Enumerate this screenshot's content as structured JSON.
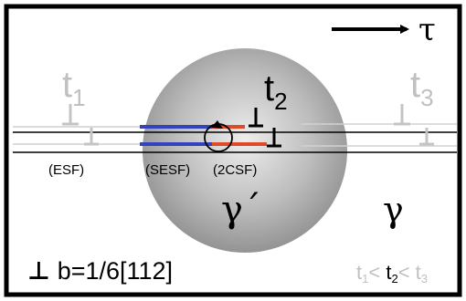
{
  "tau_symbol": "τ",
  "labels": {
    "t1_main": "t",
    "t1_sub": "1",
    "t2_main": "t",
    "t2_sub": "2",
    "t3_main": "t",
    "t3_sub": "3",
    "esf": "(ESF)",
    "sesf": "(SESF)",
    "csf2": "(2CSF)",
    "gamma_prime": "γ´",
    "gamma": "γ",
    "burgers_symbol": "⊥",
    "burgers": "b=1/6[112]",
    "order_t1": "t",
    "order_t1_sub": "1",
    "order_lt1": "< ",
    "order_t2": "t",
    "order_t2_sub": "2",
    "order_lt2": "< ",
    "order_t3": "t",
    "order_t3_sub": "3"
  },
  "colors": {
    "frame": "#000000",
    "faded": "#b4b4b4",
    "blue": "#3344bb",
    "red": "#e04a28",
    "precipitate_center": "#eeeeee",
    "precipitate_edge": "#8c8c8c"
  }
}
